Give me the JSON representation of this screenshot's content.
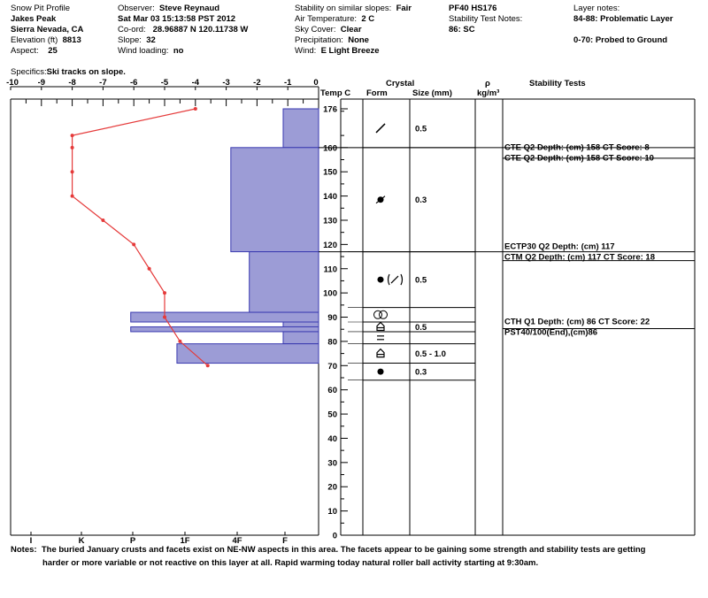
{
  "header": {
    "col1": [
      "Snow Pit Profile",
      "Jakes Peak",
      "Sierra Nevada, CA"
    ],
    "elevation_label": "Elevation (ft)",
    "elevation": "8813",
    "aspect_label": "Aspect:",
    "aspect": "25",
    "observer_label": "Observer:",
    "observer": "Steve Reynaud",
    "date": "Sat Mar 03 15:13:58 PST 2012",
    "coord_label": "Co-ord:",
    "coord": "28.96887 N 120.11738 W",
    "slope_label": "Slope:",
    "slope": "32",
    "wind_loading_label": "Wind loading:",
    "wind_loading": "no",
    "stability_label": "Stability on similar slopes:",
    "stability": "Fair",
    "air_temp_label": "Air Temperature:",
    "air_temp": "2 C",
    "sky_label": "Sky Cover:",
    "sky": "Clear",
    "precip_label": "Precipitation:",
    "precip": "None",
    "wind_label": "Wind:",
    "wind": "E Light Breeze",
    "pf": "PF40 HS176",
    "stability_test_notes_label": "Stability Test Notes:",
    "stability_test_notes": "86: SC",
    "layer_notes_label": "Layer notes:",
    "layer_notes": [
      "84-88: Problematic Layer",
      "0-70: Probed to Ground"
    ],
    "specifics_label": "Specifics:",
    "specifics": "Ski tracks on slope."
  },
  "columns": {
    "temp": "Temp C",
    "crystal": "Crystal",
    "form": "Form",
    "size": "Size (mm)",
    "rho": "ρ",
    "density_unit": "kg/m³",
    "stability": "Stability Tests"
  },
  "chart_data": {
    "type": "snow_profile",
    "temperature_axis": {
      "label": "",
      "range": [
        -10,
        0
      ],
      "ticks": [
        "-10",
        "-9",
        "-8",
        "-7",
        "-6",
        "-5",
        "-4",
        "-3",
        "-2",
        "-1",
        "0"
      ]
    },
    "hardness_axis": {
      "ticks": [
        "I",
        "K",
        "P",
        "1F",
        "4F",
        "F"
      ]
    },
    "height_axis": {
      "unit": "cm",
      "range": [
        0,
        176
      ],
      "ticks": [
        "0",
        "10",
        "20",
        "30",
        "40",
        "50",
        "60",
        "70",
        "80",
        "90",
        "100",
        "110",
        "120",
        "130",
        "140",
        "150",
        "160",
        "176"
      ]
    },
    "temperature_profile": {
      "color": "#e53a3a",
      "points": [
        {
          "height": 176,
          "temp": -4.0
        },
        {
          "height": 165,
          "temp": -8.0
        },
        {
          "height": 160,
          "temp": -8.0
        },
        {
          "height": 150,
          "temp": -8.0
        },
        {
          "height": 140,
          "temp": -8.0
        },
        {
          "height": 130,
          "temp": -7.0
        },
        {
          "height": 120,
          "temp": -6.0
        },
        {
          "height": 110,
          "temp": -5.5
        },
        {
          "height": 100,
          "temp": -5.0
        },
        {
          "height": 90,
          "temp": -5.0
        },
        {
          "height": 80,
          "temp": -4.5
        },
        {
          "height": 70,
          "temp": -3.6
        }
      ]
    },
    "hardness_layers": {
      "fill": "#9c9cd6",
      "stroke": "#3a3ab0",
      "layers": [
        {
          "top": 176,
          "bottom": 160,
          "extent": -1.15
        },
        {
          "top": 160,
          "bottom": 117,
          "extent": -2.85
        },
        {
          "top": 117,
          "bottom": 92,
          "extent": -2.25
        },
        {
          "top": 92,
          "bottom": 88,
          "extent": -6.1
        },
        {
          "top": 88,
          "bottom": 86,
          "extent": -1.15
        },
        {
          "top": 86,
          "bottom": 84,
          "extent": -6.1
        },
        {
          "top": 84,
          "bottom": 79,
          "extent": -1.15
        },
        {
          "top": 79,
          "bottom": 71,
          "extent": -4.6
        }
      ]
    },
    "grain_layers": [
      {
        "top": 176,
        "bottom": 160,
        "form": "decomposing",
        "size": "0.5"
      },
      {
        "top": 160,
        "bottom": 117,
        "form": "rounded-faceting",
        "size": "0.3"
      },
      {
        "top": 117,
        "bottom": 94,
        "form": "rounded-decomposing",
        "size": "0.5"
      },
      {
        "top": 94,
        "bottom": 88,
        "form": "melt-freeze",
        "size": ""
      },
      {
        "top": 88,
        "bottom": 84,
        "form": "depth-hoar",
        "size": "0.5"
      },
      {
        "top": 84,
        "bottom": 79,
        "form": "surface-hoar",
        "size": ""
      },
      {
        "top": 79,
        "bottom": 71,
        "form": "depth-hoar",
        "size": "0.5 - 1.0"
      },
      {
        "top": 71,
        "bottom": 64,
        "form": "rounded",
        "size": "0.3"
      }
    ],
    "stability_tests": [
      {
        "height": 158,
        "text": "CTE Q2 Depth: (cm) 158 CT Score: 8"
      },
      {
        "height": 158,
        "text": "CTE Q2 Depth: (cm) 158 CT Score: 10"
      },
      {
        "height": 117,
        "text": "ECTP30 Q2 Depth: (cm) 117"
      },
      {
        "height": 117,
        "text": "CTM Q2 Depth: (cm) 117 CT Score: 18"
      },
      {
        "height": 86,
        "text": "CTH Q1 Depth: (cm) 86 CT Score: 22"
      },
      {
        "height": 86,
        "text": "PST40/100(End),(cm)86"
      }
    ]
  },
  "notes": {
    "label": "Notes:",
    "line1": "The buried January crusts and facets exist on NE-NW aspects in this area.  The facets appear to be gaining some strength and stability tests are getting",
    "line2": "harder or more variable or not reactive on this layer at all.  Rapid warming today natural roller ball activity starting at 9:30am."
  }
}
